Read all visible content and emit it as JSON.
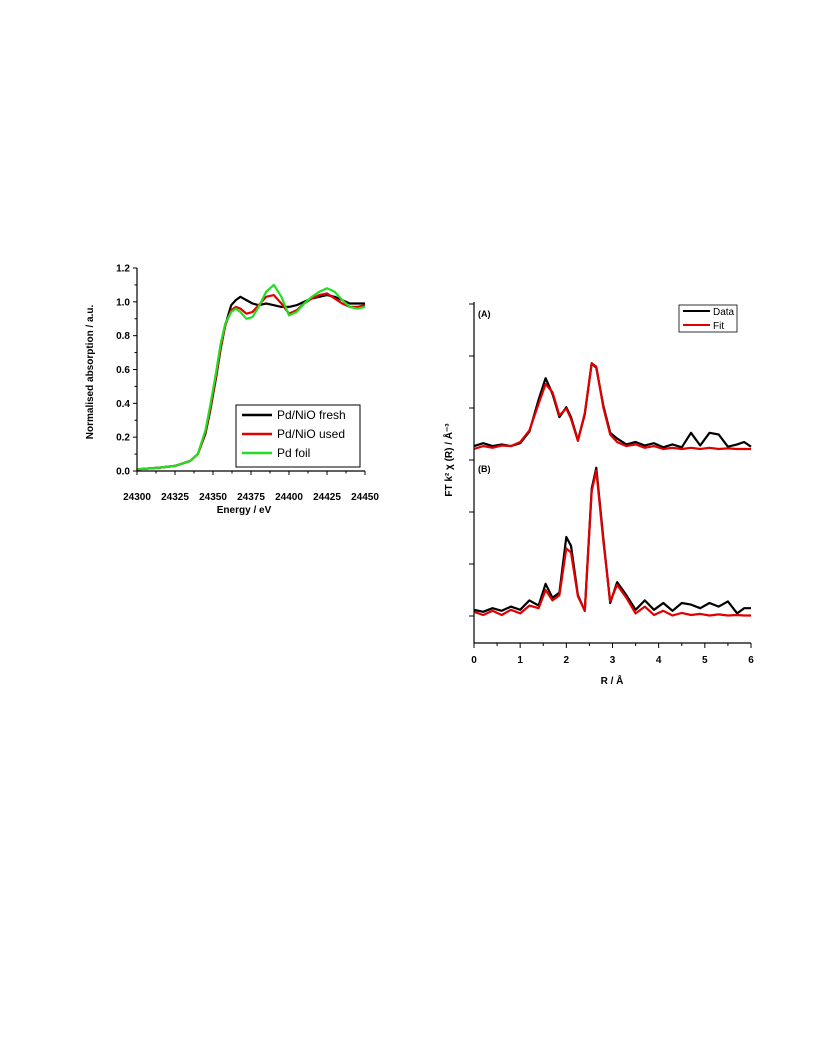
{
  "chart_data": [
    {
      "type": "line",
      "xlabel": "Energy / eV",
      "ylabel": "Normalised absorption / a.u.",
      "xlim": [
        24300,
        24450
      ],
      "ylim": [
        0.0,
        1.2
      ],
      "xticks": [
        "24300",
        "24325",
        "24350",
        "24375",
        "24400",
        "24425",
        "24450"
      ],
      "yticks": [
        "0.0",
        "0.2",
        "0.4",
        "0.6",
        "0.8",
        "1.0",
        "1.2"
      ],
      "grid": false,
      "legend_position": "bottom-right",
      "series": [
        {
          "name": "Pd/NiO fresh",
          "color": "#000000",
          "x": [
            24300,
            24315,
            24325,
            24335,
            24340,
            24345,
            24348,
            24352,
            24355,
            24358,
            24362,
            24365,
            24368,
            24372,
            24376,
            24380,
            24385,
            24390,
            24395,
            24400,
            24405,
            24410,
            24415,
            24420,
            24425,
            24430,
            24435,
            24440,
            24445,
            24450
          ],
          "values": [
            0.01,
            0.02,
            0.03,
            0.06,
            0.1,
            0.22,
            0.35,
            0.55,
            0.72,
            0.86,
            0.98,
            1.01,
            1.03,
            1.01,
            0.99,
            0.98,
            0.99,
            0.98,
            0.97,
            0.97,
            0.98,
            1.0,
            1.02,
            1.03,
            1.04,
            1.03,
            1.01,
            0.99,
            0.99,
            0.99
          ]
        },
        {
          "name": "Pd/NiO used",
          "color": "#e00000",
          "x": [
            24300,
            24315,
            24325,
            24335,
            24340,
            24345,
            24348,
            24352,
            24355,
            24358,
            24362,
            24365,
            24368,
            24372,
            24376,
            24380,
            24385,
            24390,
            24395,
            24400,
            24405,
            24410,
            24415,
            24420,
            24425,
            24430,
            24435,
            24440,
            24445,
            24450
          ],
          "values": [
            0.01,
            0.02,
            0.03,
            0.06,
            0.1,
            0.23,
            0.36,
            0.56,
            0.73,
            0.86,
            0.95,
            0.97,
            0.96,
            0.93,
            0.94,
            0.98,
            1.03,
            1.04,
            0.99,
            0.93,
            0.95,
            0.99,
            1.02,
            1.04,
            1.05,
            1.02,
            0.99,
            0.97,
            0.97,
            0.98
          ]
        },
        {
          "name": "Pd foil",
          "color": "#22dd22",
          "x": [
            24300,
            24315,
            24325,
            24335,
            24340,
            24345,
            24348,
            24352,
            24355,
            24358,
            24362,
            24365,
            24368,
            24372,
            24376,
            24380,
            24385,
            24390,
            24395,
            24400,
            24405,
            24410,
            24415,
            24420,
            24425,
            24430,
            24435,
            24440,
            24445,
            24450
          ],
          "values": [
            0.01,
            0.02,
            0.03,
            0.06,
            0.1,
            0.24,
            0.38,
            0.58,
            0.75,
            0.87,
            0.94,
            0.96,
            0.94,
            0.9,
            0.91,
            0.97,
            1.06,
            1.1,
            1.03,
            0.92,
            0.94,
            0.99,
            1.03,
            1.06,
            1.08,
            1.06,
            1.01,
            0.97,
            0.96,
            0.97
          ]
        }
      ]
    },
    {
      "type": "line",
      "xlabel": "R / Å",
      "ylabel": "FT k² χ  (R) / Å⁻³",
      "xlim": [
        0,
        6
      ],
      "xticks": [
        "0",
        "1",
        "2",
        "3",
        "4",
        "5",
        "6"
      ],
      "grid": false,
      "legend_position": "top-right",
      "panels": [
        {
          "label": "(A)",
          "series": [
            {
              "name": "Data",
              "color": "#000000",
              "x": [
                0,
                0.2,
                0.4,
                0.6,
                0.8,
                1.0,
                1.2,
                1.4,
                1.55,
                1.7,
                1.85,
                2.0,
                2.1,
                2.25,
                2.4,
                2.55,
                2.65,
                2.8,
                2.95,
                3.1,
                3.3,
                3.5,
                3.7,
                3.9,
                4.1,
                4.3,
                4.5,
                4.7,
                4.9,
                5.1,
                5.3,
                5.5,
                5.7,
                5.85,
                6.0
              ],
              "values": [
                0.05,
                0.1,
                0.05,
                0.08,
                0.05,
                0.1,
                0.3,
                0.85,
                1.22,
                0.95,
                0.55,
                0.72,
                0.55,
                0.15,
                0.6,
                1.48,
                1.4,
                0.75,
                0.28,
                0.18,
                0.08,
                0.12,
                0.06,
                0.1,
                0.03,
                0.08,
                0.03,
                0.28,
                0.06,
                0.28,
                0.25,
                0.04,
                0.08,
                0.12,
                0.04
              ]
            },
            {
              "name": "Fit",
              "color": "#e00000",
              "x": [
                0,
                0.2,
                0.4,
                0.6,
                0.8,
                1.0,
                1.2,
                1.4,
                1.55,
                1.7,
                1.85,
                2.0,
                2.1,
                2.25,
                2.4,
                2.55,
                2.65,
                2.8,
                2.95,
                3.1,
                3.3,
                3.5,
                3.7,
                3.9,
                4.1,
                4.3,
                4.5,
                4.7,
                4.9,
                5.1,
                5.3,
                5.5,
                5.7,
                5.85,
                6.0
              ],
              "values": [
                0.0,
                0.05,
                0.02,
                0.06,
                0.05,
                0.12,
                0.32,
                0.78,
                1.12,
                0.98,
                0.58,
                0.7,
                0.52,
                0.14,
                0.62,
                1.48,
                1.42,
                0.72,
                0.25,
                0.12,
                0.05,
                0.08,
                0.02,
                0.05,
                0.0,
                0.02,
                0.0,
                0.02,
                0.0,
                0.02,
                0.0,
                0.01,
                0.0,
                0.0,
                0.0
              ]
            }
          ]
        },
        {
          "label": "(B)",
          "series": [
            {
              "name": "Data",
              "color": "#000000",
              "x": [
                0,
                0.2,
                0.4,
                0.6,
                0.8,
                1.0,
                1.2,
                1.4,
                1.55,
                1.7,
                1.85,
                2.0,
                2.1,
                2.25,
                2.4,
                2.55,
                2.65,
                2.8,
                2.95,
                3.1,
                3.3,
                3.5,
                3.7,
                3.9,
                4.1,
                4.3,
                4.5,
                4.7,
                4.9,
                5.1,
                5.3,
                5.5,
                5.7,
                5.85,
                6.0
              ],
              "values": [
                0.12,
                0.08,
                0.15,
                0.1,
                0.18,
                0.12,
                0.3,
                0.2,
                0.62,
                0.35,
                0.45,
                1.52,
                1.35,
                0.4,
                0.1,
                2.45,
                2.85,
                1.5,
                0.25,
                0.65,
                0.4,
                0.12,
                0.3,
                0.12,
                0.25,
                0.1,
                0.25,
                0.22,
                0.15,
                0.25,
                0.18,
                0.28,
                0.05,
                0.15,
                0.15
              ]
            },
            {
              "name": "Fit",
              "color": "#e00000",
              "x": [
                0,
                0.2,
                0.4,
                0.6,
                0.8,
                1.0,
                1.2,
                1.4,
                1.55,
                1.7,
                1.85,
                2.0,
                2.1,
                2.25,
                2.4,
                2.55,
                2.65,
                2.8,
                2.95,
                3.1,
                3.3,
                3.5,
                3.7,
                3.9,
                4.1,
                4.3,
                4.5,
                4.7,
                4.9,
                5.1,
                5.3,
                5.5,
                5.7,
                5.85,
                6.0
              ],
              "values": [
                0.08,
                0.02,
                0.1,
                0.02,
                0.12,
                0.05,
                0.2,
                0.15,
                0.5,
                0.3,
                0.4,
                1.3,
                1.22,
                0.38,
                0.1,
                2.4,
                2.8,
                1.45,
                0.28,
                0.6,
                0.35,
                0.05,
                0.18,
                0.02,
                0.1,
                0.01,
                0.06,
                0.02,
                0.04,
                0.01,
                0.03,
                0.01,
                0.02,
                0.01,
                0.01
              ]
            }
          ]
        }
      ]
    }
  ]
}
